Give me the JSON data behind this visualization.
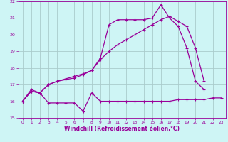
{
  "background_color": "#cef5f5",
  "grid_color": "#aacccc",
  "line_color": "#990099",
  "xlabel": "Windchill (Refroidissement éolien,°C)",
  "xlim": [
    -0.5,
    23.5
  ],
  "ylim": [
    15,
    22
  ],
  "yticks": [
    15,
    16,
    17,
    18,
    19,
    20,
    21,
    22
  ],
  "xticks": [
    0,
    1,
    2,
    3,
    4,
    5,
    6,
    7,
    8,
    9,
    10,
    11,
    12,
    13,
    14,
    15,
    16,
    17,
    18,
    19,
    20,
    21,
    22,
    23
  ],
  "line1_x": [
    0,
    1,
    2,
    3,
    4,
    5,
    6,
    7,
    8,
    9,
    10,
    11,
    12,
    13,
    14,
    15,
    16,
    17,
    18,
    19,
    20,
    21,
    22,
    23
  ],
  "line1_y": [
    16.0,
    16.6,
    16.5,
    15.9,
    15.9,
    15.9,
    15.9,
    15.4,
    16.5,
    16.0,
    16.0,
    16.0,
    16.0,
    16.0,
    16.0,
    16.0,
    16.0,
    16.0,
    16.1,
    16.1,
    16.1,
    16.1,
    16.2,
    16.2
  ],
  "line2_x": [
    0,
    1,
    2,
    3,
    4,
    5,
    6,
    7,
    8,
    9,
    10,
    11,
    12,
    13,
    14,
    15,
    16,
    17,
    18,
    19,
    20,
    21,
    22
  ],
  "line2_y": [
    16.0,
    16.7,
    16.5,
    17.0,
    17.2,
    17.3,
    17.4,
    17.6,
    17.85,
    18.6,
    20.6,
    20.9,
    20.9,
    20.9,
    20.9,
    21.0,
    21.8,
    21.0,
    20.5,
    19.2,
    17.2,
    16.7,
    null
  ],
  "line3_x": [
    0,
    1,
    2,
    3,
    4,
    5,
    6,
    7,
    8,
    9,
    10,
    11,
    12,
    13,
    14,
    15,
    16,
    17,
    18,
    19,
    20,
    21,
    22
  ],
  "line3_y": [
    16.0,
    16.6,
    16.5,
    17.0,
    17.2,
    17.35,
    17.5,
    17.65,
    17.85,
    18.5,
    19.0,
    19.4,
    19.7,
    20.0,
    20.3,
    20.6,
    20.9,
    21.1,
    20.8,
    20.5,
    19.2,
    17.2,
    null
  ]
}
